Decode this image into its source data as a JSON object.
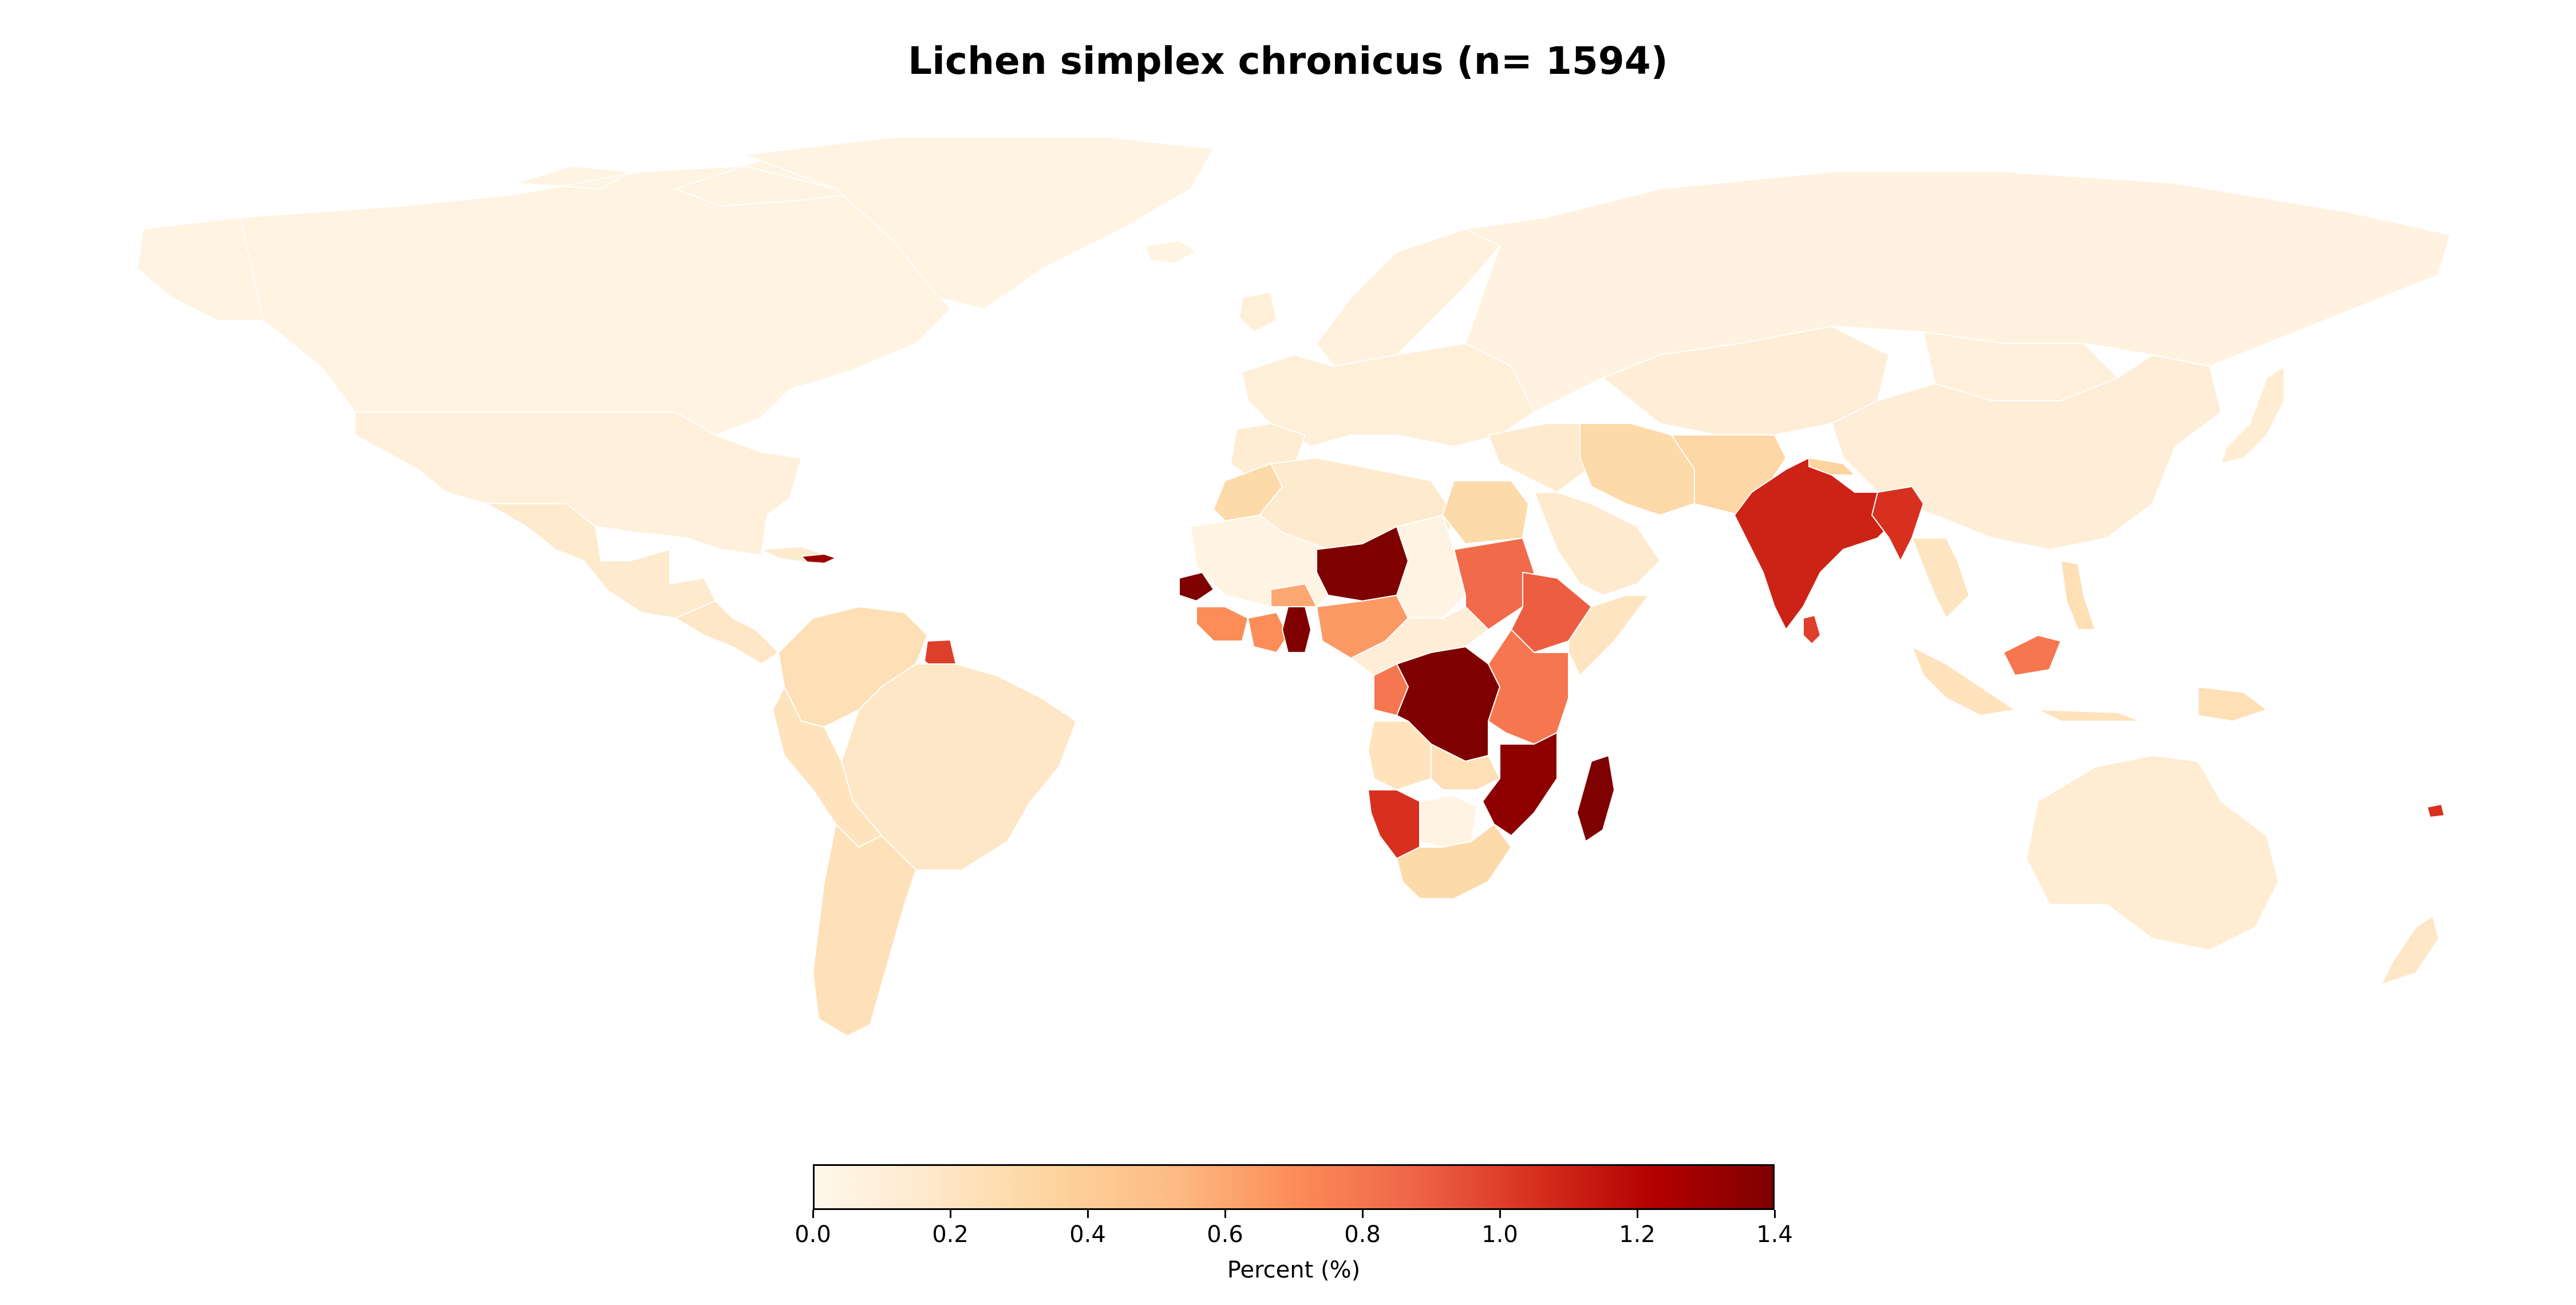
{
  "title": "Lichen simplex chronicus (n= 1594)",
  "colorbar": {
    "label": "Percent (%)",
    "min": 0.0,
    "max": 1.4,
    "ticks": [
      "0.0",
      "0.2",
      "0.4",
      "0.6",
      "0.8",
      "1.0",
      "1.2",
      "1.4"
    ],
    "colormap": "OrRd",
    "stops": [
      "#fff7ec",
      "#fee8c8",
      "#fdd49e",
      "#fdbb84",
      "#fc8d59",
      "#ef6548",
      "#d7301f",
      "#b30000",
      "#7f0000"
    ]
  },
  "chart_data": {
    "type": "choropleth",
    "title": "Lichen simplex chronicus (n= 1594)",
    "value_label": "Percent (%)",
    "range": [
      0.0,
      1.4
    ],
    "regions": [
      {
        "name": "Canada",
        "value": 0.05
      },
      {
        "name": "Alaska",
        "value": 0.05
      },
      {
        "name": "Greenland",
        "value": 0.05
      },
      {
        "name": "United States",
        "value": 0.08
      },
      {
        "name": "Mexico",
        "value": 0.15
      },
      {
        "name": "Central America",
        "value": 0.18
      },
      {
        "name": "Cuba",
        "value": 0.15
      },
      {
        "name": "Haiti",
        "value": 1.3
      },
      {
        "name": "Colombia / Venezuela",
        "value": 0.25
      },
      {
        "name": "Suriname",
        "value": 1.0
      },
      {
        "name": "Brazil",
        "value": 0.18
      },
      {
        "name": "Peru / Bolivia",
        "value": 0.22
      },
      {
        "name": "Argentina / Chile",
        "value": 0.24
      },
      {
        "name": "Iceland",
        "value": 0.05
      },
      {
        "name": "Scandinavia",
        "value": 0.07
      },
      {
        "name": "Europe",
        "value": 0.09
      },
      {
        "name": "Iberia",
        "value": 0.12
      },
      {
        "name": "Russia",
        "value": 0.06
      },
      {
        "name": "Kazakhstan / Central Asia",
        "value": 0.1
      },
      {
        "name": "Mongolia",
        "value": 0.08
      },
      {
        "name": "China",
        "value": 0.1
      },
      {
        "name": "Japan",
        "value": 0.12
      },
      {
        "name": "Turkey / Middle East",
        "value": 0.14
      },
      {
        "name": "Arabian Peninsula",
        "value": 0.14
      },
      {
        "name": "Iran",
        "value": 0.3
      },
      {
        "name": "Afghanistan / Pakistan",
        "value": 0.32
      },
      {
        "name": "India",
        "value": 1.1
      },
      {
        "name": "Sri Lanka",
        "value": 1.0
      },
      {
        "name": "Nepal",
        "value": 0.35
      },
      {
        "name": "Bangladesh / Myanmar",
        "value": 1.05
      },
      {
        "name": "Southeast Asia",
        "value": 0.2
      },
      {
        "name": "Philippines",
        "value": 0.25
      },
      {
        "name": "Indonesia",
        "value": 0.22
      },
      {
        "name": "Borneo (Malaysia)",
        "value": 0.8
      },
      {
        "name": "Papua New Guinea",
        "value": 0.25
      },
      {
        "name": "Australia",
        "value": 0.12
      },
      {
        "name": "New Zealand",
        "value": 0.18
      },
      {
        "name": "Fiji",
        "value": 1.05
      },
      {
        "name": "Morocco",
        "value": 0.3
      },
      {
        "name": "Algeria / Libya",
        "value": 0.15
      },
      {
        "name": "Egypt",
        "value": 0.3
      },
      {
        "name": "Mauritania / Mali",
        "value": 0.05
      },
      {
        "name": "Senegal",
        "value": 1.4
      },
      {
        "name": "Guinea / Sierra Leone",
        "value": 0.7
      },
      {
        "name": "Ivory Coast",
        "value": 0.7
      },
      {
        "name": "Ghana",
        "value": 1.4
      },
      {
        "name": "Burkina Faso",
        "value": 0.6
      },
      {
        "name": "Niger",
        "value": 1.4
      },
      {
        "name": "Nigeria",
        "value": 0.65
      },
      {
        "name": "Chad",
        "value": 0.04
      },
      {
        "name": "Sudan",
        "value": 0.85
      },
      {
        "name": "Ethiopia",
        "value": 0.9
      },
      {
        "name": "Somalia",
        "value": 0.2
      },
      {
        "name": "Cameroon / Central African Republic",
        "value": 0.1
      },
      {
        "name": "Congo",
        "value": 0.8
      },
      {
        "name": "DR Congo",
        "value": 1.4
      },
      {
        "name": "Uganda / Kenya / Tanzania",
        "value": 0.8
      },
      {
        "name": "Angola",
        "value": 0.22
      },
      {
        "name": "Zambia",
        "value": 0.25
      },
      {
        "name": "Mozambique / Zimbabwe / Malawi",
        "value": 1.35
      },
      {
        "name": "Namibia",
        "value": 1.05
      },
      {
        "name": "Botswana",
        "value": 0.05
      },
      {
        "name": "South Africa",
        "value": 0.3
      },
      {
        "name": "Madagascar",
        "value": 1.4
      }
    ]
  }
}
